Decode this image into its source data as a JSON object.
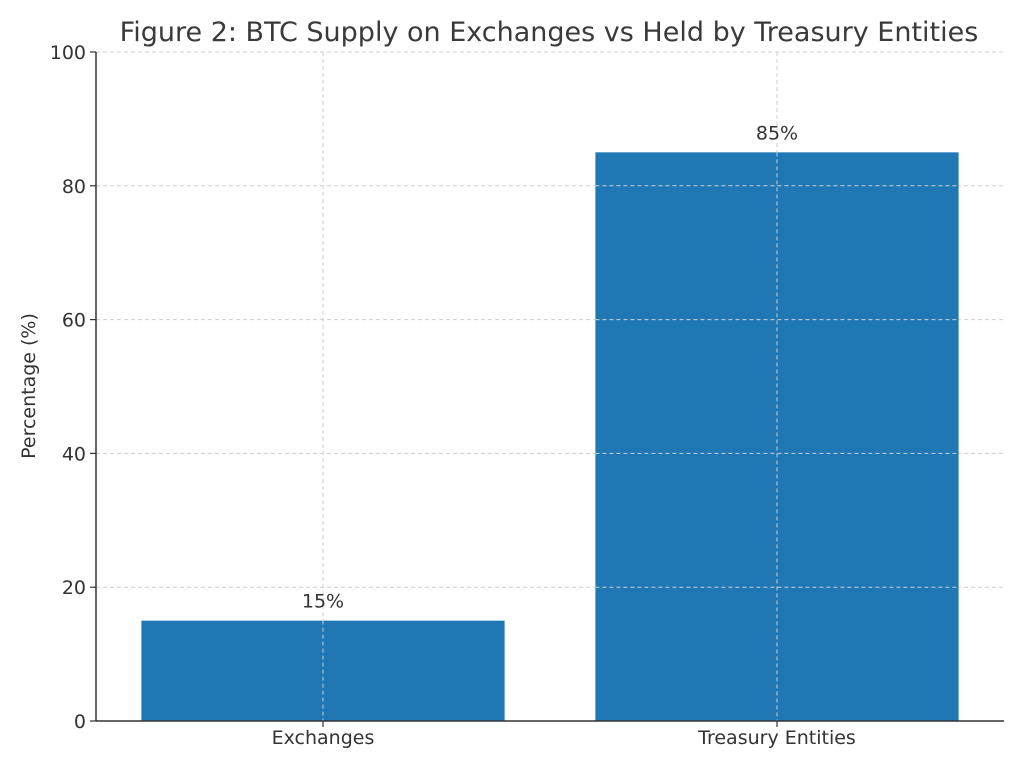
{
  "chart_data": {
    "type": "bar",
    "title": "Figure 2: BTC Supply on Exchanges vs Held by Treasury Entities",
    "xlabel": "",
    "ylabel": "Percentage (%)",
    "categories": [
      "Exchanges",
      "Treasury Entities"
    ],
    "values": [
      15,
      85
    ],
    "data_labels": [
      "15%",
      "85%"
    ],
    "ylim": [
      0,
      100
    ],
    "yticks": [
      0,
      20,
      40,
      60,
      80,
      100
    ],
    "ytick_labels": [
      "0",
      "20",
      "40",
      "60",
      "80",
      "100"
    ],
    "grid": true,
    "legend": "none",
    "bar_color": "#1f77b4"
  }
}
